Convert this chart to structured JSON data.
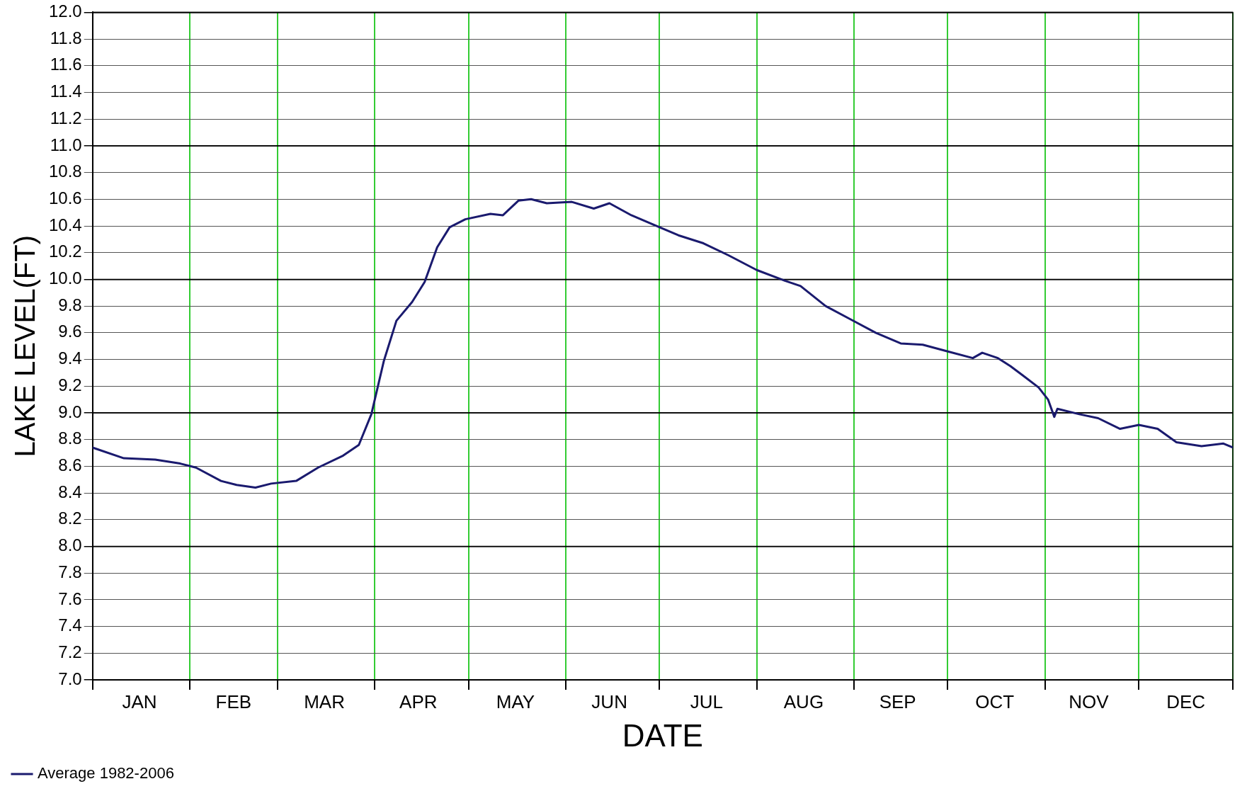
{
  "chart_data": {
    "type": "line",
    "xlabel": "DATE",
    "ylabel": "LAKE LEVEL(FT)",
    "xlim": [
      "--01-01",
      "--12-31"
    ],
    "xticks": [
      {
        "value": "--01-01",
        "label": null
      },
      {
        "value": "--01-16",
        "label": "JAN"
      },
      {
        "value": "--02-01",
        "label": null
      },
      {
        "value": "--02-15",
        "label": "FEB"
      },
      {
        "value": "--03-01",
        "label": null
      },
      {
        "value": "--03-16",
        "label": "MAR"
      },
      {
        "value": "--04-01",
        "label": null
      },
      {
        "value": "--04-15",
        "label": "APR"
      },
      {
        "value": "--05-01",
        "label": null
      },
      {
        "value": "--05-16",
        "label": "MAY"
      },
      {
        "value": "--06-01",
        "label": null
      },
      {
        "value": "--06-15",
        "label": "JUN"
      },
      {
        "value": "--07-01",
        "label": null
      },
      {
        "value": "--07-16",
        "label": "JUL"
      },
      {
        "value": "--08-01",
        "label": null
      },
      {
        "value": "--08-16",
        "label": "AUG"
      },
      {
        "value": "--09-01",
        "label": null
      },
      {
        "value": "--09-15",
        "label": "SEP"
      },
      {
        "value": "--10-01",
        "label": null
      },
      {
        "value": "--10-16",
        "label": "OCT"
      },
      {
        "value": "--11-01",
        "label": null
      },
      {
        "value": "--11-15",
        "label": "NOV"
      },
      {
        "value": "--12-01",
        "label": null
      },
      {
        "value": "--12-16",
        "label": "DEC"
      },
      {
        "value": "--12-31",
        "label": null
      }
    ],
    "ylim": [
      7,
      12
    ],
    "yticks": [
      {
        "value": 7,
        "label": "7.0"
      },
      7.2,
      7.4,
      7.6,
      7.8,
      {
        "value": 8,
        "label": "8.0"
      },
      8.2,
      8.4,
      8.6,
      8.8,
      {
        "value": 9,
        "label": "9.0"
      },
      9.2,
      9.4,
      9.6,
      9.8,
      {
        "value": 10,
        "label": "10.0"
      },
      10.2,
      10.4,
      10.6,
      10.8,
      {
        "value": 11,
        "label": "11.0"
      },
      11.2,
      11.4,
      11.6,
      11.8,
      {
        "value": 12,
        "label": "12.0"
      }
    ],
    "grid": true,
    "legend": "bottom left",
    "marker": "none",
    "line_style": "solid",
    "series": [
      {
        "name": "Average 1982-2006",
        "color": "#1a1a6e",
        "x": [
          "--01-01",
          "--01-11",
          "--01-21",
          "--01-29",
          "--02-03",
          "--02-11",
          "--02-16",
          "--02-22",
          "--02-27",
          "--03-07",
          "--03-14",
          "--03-22",
          "--03-27",
          "--03-31",
          "--04-04",
          "--04-08",
          "--04-13",
          "--04-17",
          "--04-21",
          "--04-25",
          "--04-30",
          "--05-08",
          "--05-12",
          "--05-17",
          "--05-21",
          "--05-26",
          "--06-03",
          "--06-10",
          "--06-15",
          "--06-22",
          "--06-29",
          "--07-07",
          "--07-15",
          "--07-23",
          "--08-01",
          "--08-10",
          "--08-15",
          "--08-23",
          "--08-31",
          "--09-08",
          "--09-16",
          "--09-23",
          "--10-01",
          "--10-09",
          "--10-12",
          "--10-17",
          "--10-21",
          "--10-25",
          "--10-30",
          "--11-02",
          "--11-04",
          "--11-05",
          "--11-12",
          "--11-18",
          "--11-25",
          "--12-01",
          "--12-07",
          "--12-13",
          "--12-21",
          "--12-28",
          "--12-31"
        ],
        "values": [
          8.74,
          8.66,
          8.65,
          8.62,
          8.59,
          8.49,
          8.46,
          8.44,
          8.47,
          8.49,
          8.59,
          8.68,
          8.76,
          8.99,
          9.39,
          9.69,
          9.83,
          9.98,
          10.24,
          10.39,
          10.45,
          10.49,
          10.48,
          10.59,
          10.6,
          10.57,
          10.58,
          10.53,
          10.57,
          10.48,
          10.41,
          10.33,
          10.27,
          10.18,
          10.07,
          9.99,
          9.95,
          9.8,
          9.7,
          9.6,
          9.52,
          9.51,
          9.46,
          9.41,
          9.45,
          9.41,
          9.35,
          9.28,
          9.19,
          9.1,
          8.97,
          9.03,
          8.99,
          8.96,
          8.88,
          8.91,
          8.88,
          8.78,
          8.75,
          8.77,
          8.74
        ]
      }
    ]
  }
}
